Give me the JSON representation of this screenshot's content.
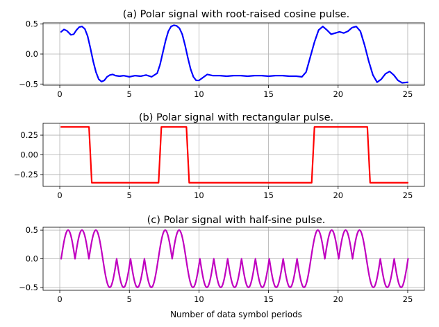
{
  "chart_data": [
    {
      "type": "line",
      "title": "(a) Polar signal with root-raised cosine pulse.",
      "xlabel": "",
      "ylabel": "",
      "xlim": [
        -1.2,
        26.2
      ],
      "ylim": [
        -0.52,
        0.52
      ],
      "xticks": [
        0,
        5,
        10,
        15,
        20,
        25
      ],
      "yticks": [
        -0.5,
        0.0,
        0.5
      ],
      "ytick_labels": [
        "−0.5",
        "0.0",
        "0.5"
      ],
      "grid": true,
      "series": [
        {
          "color": "#0000ff",
          "x": [
            0.1,
            0.3,
            0.5,
            0.8,
            1.0,
            1.2,
            1.4,
            1.6,
            1.8,
            2.0,
            2.2,
            2.4,
            2.6,
            2.8,
            3.0,
            3.2,
            3.4,
            3.6,
            3.8,
            4.0,
            4.3,
            4.6,
            5.0,
            5.4,
            5.8,
            6.2,
            6.6,
            7.0,
            7.2,
            7.4,
            7.6,
            7.8,
            8.0,
            8.2,
            8.4,
            8.6,
            8.8,
            9.0,
            9.2,
            9.4,
            9.6,
            9.8,
            10.0,
            10.3,
            10.6,
            11.0,
            11.5,
            12.0,
            12.5,
            13.0,
            13.5,
            14.0,
            14.5,
            15.0,
            15.5,
            16.0,
            16.5,
            17.0,
            17.4,
            17.7,
            18.0,
            18.3,
            18.6,
            18.9,
            19.2,
            19.5,
            19.8,
            20.1,
            20.4,
            20.7,
            21.0,
            21.3,
            21.6,
            21.9,
            22.2,
            22.5,
            22.8,
            23.1,
            23.4,
            23.7,
            24.0,
            24.3,
            24.6,
            25.0
          ],
          "y": [
            0.37,
            0.41,
            0.39,
            0.32,
            0.33,
            0.4,
            0.45,
            0.46,
            0.42,
            0.3,
            0.1,
            -0.12,
            -0.3,
            -0.42,
            -0.46,
            -0.44,
            -0.38,
            -0.35,
            -0.34,
            -0.36,
            -0.37,
            -0.36,
            -0.38,
            -0.36,
            -0.37,
            -0.35,
            -0.38,
            -0.32,
            -0.18,
            0.02,
            0.22,
            0.38,
            0.46,
            0.48,
            0.47,
            0.43,
            0.33,
            0.15,
            -0.06,
            -0.25,
            -0.38,
            -0.44,
            -0.44,
            -0.39,
            -0.34,
            -0.36,
            -0.36,
            -0.37,
            -0.36,
            -0.36,
            -0.37,
            -0.36,
            -0.36,
            -0.37,
            -0.36,
            -0.36,
            -0.37,
            -0.37,
            -0.38,
            -0.3,
            -0.05,
            0.2,
            0.4,
            0.46,
            0.4,
            0.33,
            0.35,
            0.37,
            0.35,
            0.38,
            0.44,
            0.46,
            0.38,
            0.15,
            -0.12,
            -0.35,
            -0.47,
            -0.42,
            -0.33,
            -0.29,
            -0.35,
            -0.44,
            -0.48,
            -0.47
          ]
        }
      ]
    },
    {
      "type": "line",
      "title": "(b) Polar signal with rectangular pulse.",
      "xlabel": "",
      "ylabel": "",
      "xlim": [
        -1.2,
        26.2
      ],
      "ylim": [
        -0.4,
        0.4
      ],
      "xticks": [
        0,
        5,
        10,
        15,
        20,
        25
      ],
      "yticks": [
        -0.25,
        0.0,
        0.25
      ],
      "ytick_labels": [
        "−0.25",
        "0.00",
        "0.25"
      ],
      "grid": true,
      "series": [
        {
          "color": "#ff0000",
          "x": [
            0.1,
            2.1,
            2.3,
            7.1,
            7.3,
            9.1,
            9.3,
            18.1,
            18.3,
            22.1,
            22.3,
            25.0
          ],
          "y": [
            0.354,
            0.354,
            -0.354,
            -0.354,
            0.354,
            0.354,
            -0.354,
            -0.354,
            0.354,
            0.354,
            -0.354,
            -0.354
          ]
        }
      ]
    },
    {
      "type": "line",
      "title": "(c) Polar signal with half-sine pulse.",
      "xlabel": "Number of data symbol periods",
      "ylabel": "",
      "xlim": [
        -1.2,
        26.2
      ],
      "ylim": [
        -0.55,
        0.55
      ],
      "xticks": [
        0,
        5,
        10,
        15,
        20,
        25
      ],
      "yticks": [
        -0.5,
        0.0,
        0.5
      ],
      "ytick_labels": [
        "−0.5",
        "0.0",
        "0.5"
      ],
      "grid": true,
      "symbols": [
        1,
        1,
        1,
        -1,
        -1,
        -1,
        -1,
        1,
        1,
        -1,
        -1,
        -1,
        -1,
        -1,
        -1,
        -1,
        -1,
        -1,
        1,
        1,
        1,
        1,
        -1,
        -1,
        -1
      ],
      "pulse_amplitude": 0.5,
      "series": [
        {
          "color": "#c000c0",
          "x": [],
          "y": []
        }
      ]
    }
  ]
}
